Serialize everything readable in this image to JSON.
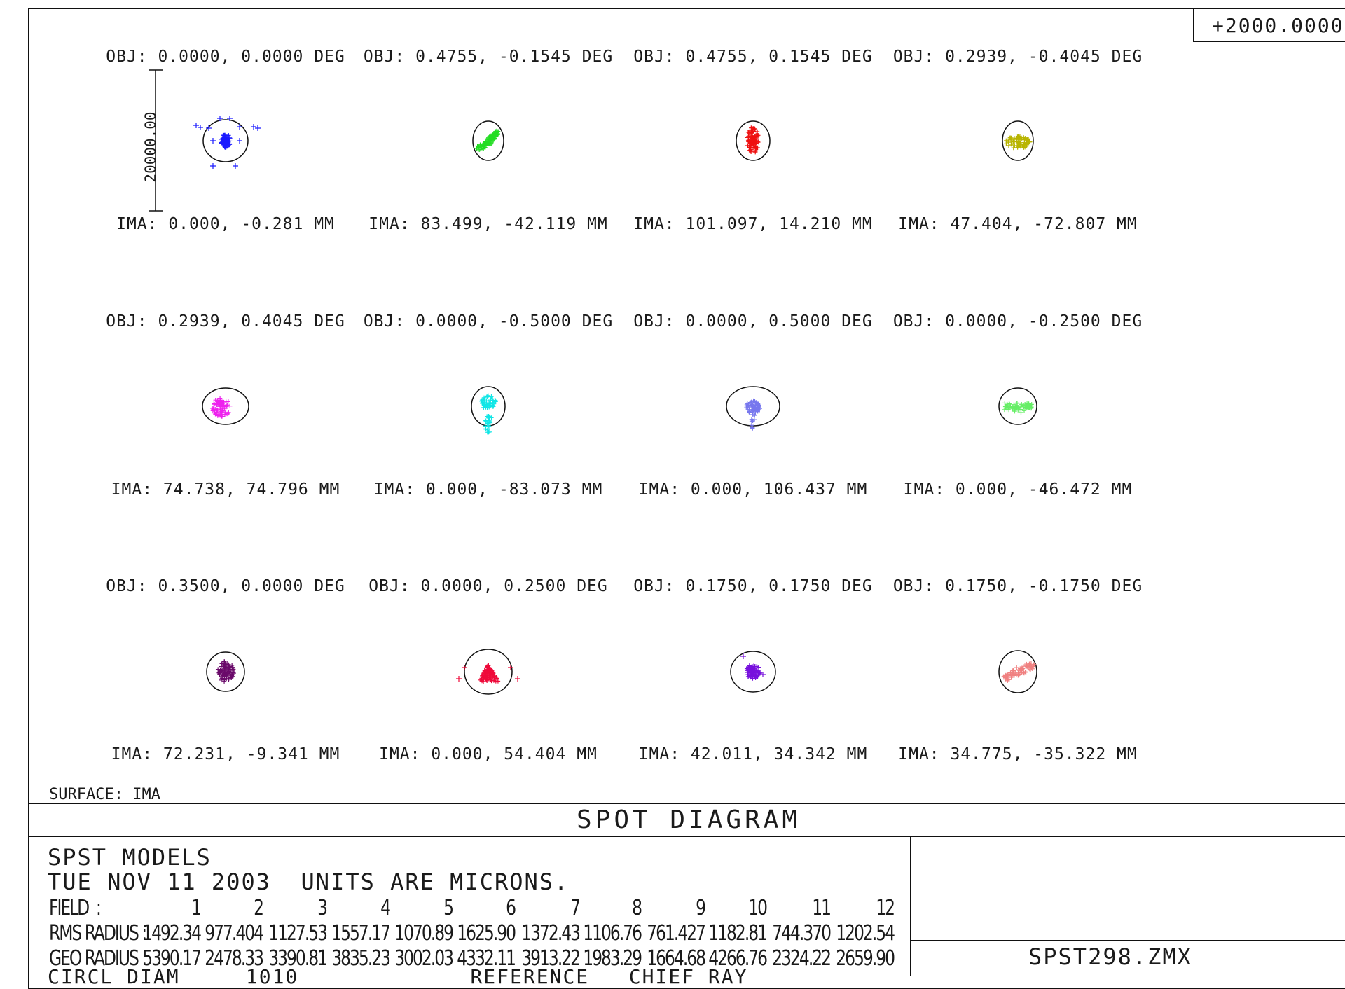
{
  "scale_label": "+2000.0000",
  "scale_bar_label": "20000.00",
  "surface_label": "SURFACE: IMA",
  "title": "SPOT DIAGRAM",
  "header_line1": "SPST MODELS",
  "header_line2": "TUE NOV 11 2003  UNITS ARE MICRONS.",
  "filename": "SPST298.ZMX",
  "cut_line": "CIRCL DIAM     1010             REFERENCE   CHIEF RAY",
  "fields": [
    {
      "obj": "OBJ: 0.0000, 0.0000 DEG",
      "ima": "IMA: 0.000, -0.281 MM",
      "color": "#1a1aff",
      "shape": "blue"
    },
    {
      "obj": "OBJ: 0.4755, -0.1545 DEG",
      "ima": "IMA: 83.499, -42.119 MM",
      "color": "#22dd22",
      "shape": "diag"
    },
    {
      "obj": "OBJ: 0.4755, 0.1545 DEG",
      "ima": "IMA: 101.097, 14.210 MM",
      "color": "#ee1111",
      "shape": "tall"
    },
    {
      "obj": "OBJ: 0.2939, -0.4045 DEG",
      "ima": "IMA: 47.404, -72.807 MM",
      "color": "#b8b400",
      "shape": "low"
    },
    {
      "obj": "OBJ: 0.2939, 0.4045 DEG",
      "ima": "IMA: 74.738, 74.796 MM",
      "color": "#ee22ee",
      "shape": "left"
    },
    {
      "obj": "OBJ: 0.0000, -0.5000 DEG",
      "ima": "IMA: 0.000, -83.073 MM",
      "color": "#11e6e6",
      "shape": "drop"
    },
    {
      "obj": "OBJ: 0.0000, 0.5000 DEG",
      "ima": "IMA: 0.000, 106.437 MM",
      "color": "#7777ee",
      "shape": "dome"
    },
    {
      "obj": "OBJ: 0.0000, -0.2500 DEG",
      "ima": "IMA: 0.000, -46.472 MM",
      "color": "#66ee66",
      "shape": "band"
    },
    {
      "obj": "OBJ: 0.3500, 0.0000 DEG",
      "ima": "IMA: 72.231, -9.341 MM",
      "color": "#6a0a6a",
      "shape": "round"
    },
    {
      "obj": "OBJ: 0.0000, 0.2500 DEG",
      "ima": "IMA: 0.000, 54.404 MM",
      "color": "#ee0a3a",
      "shape": "tri"
    },
    {
      "obj": "OBJ: 0.1750, 0.1750 DEG",
      "ima": "IMA: 42.011, 34.342 MM",
      "color": "#7711dd",
      "shape": "small"
    },
    {
      "obj": "OBJ: 0.1750, -0.1750 DEG",
      "ima": "IMA: 34.775, -35.322 MM",
      "color": "#f08080",
      "shape": "diag2"
    }
  ],
  "table": {
    "field_label": "FIELD  :",
    "rms_label": "RMS RADIUS :",
    "geo_label": "GEO RADIUS :",
    "field_numbers": [
      "1",
      "2",
      "3",
      "4",
      "5",
      "6",
      "7",
      "8",
      "9",
      "10",
      "11",
      "12"
    ],
    "rms": [
      "1492.34",
      "977.404",
      "1127.53",
      "1557.17",
      "1070.89",
      "1625.90",
      "1372.43",
      "1106.76",
      "761.427",
      "1182.81",
      "744.370",
      "1202.54"
    ],
    "geo": [
      "5390.17",
      "2478.33",
      "3390.81",
      "3835.23",
      "3002.03",
      "4332.11",
      "3913.22",
      "1983.29",
      "1664.68",
      "4266.76",
      "2324.22",
      "2659.90"
    ]
  }
}
